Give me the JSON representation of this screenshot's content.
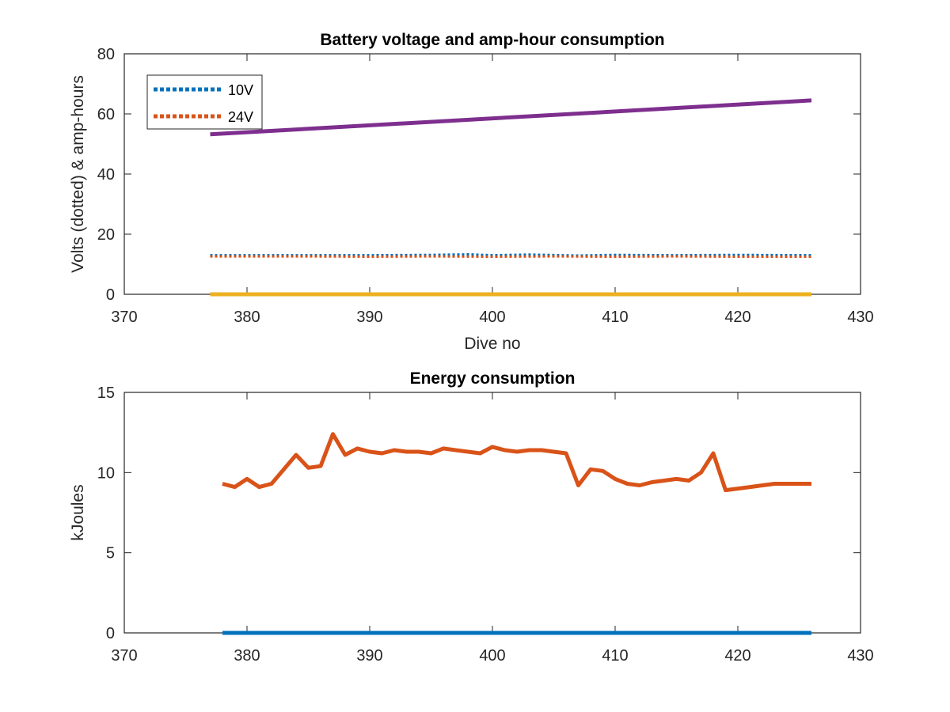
{
  "chart_data": [
    {
      "type": "line",
      "title": "Battery voltage and amp-hour consumption",
      "xlabel": "Dive no",
      "ylabel": "Volts (dotted) & amp-hours",
      "xlim": [
        370,
        430
      ],
      "ylim": [
        0,
        80
      ],
      "xticks": [
        "370",
        "380",
        "390",
        "400",
        "410",
        "420",
        "430"
      ],
      "yticks": [
        "0",
        "20",
        "40",
        "60",
        "80"
      ],
      "grid": false,
      "legend": {
        "placement": "top-left",
        "entries": [
          "10V",
          "24V"
        ]
      },
      "series": [
        {
          "name": "10V",
          "style": "dotted",
          "color": "#0072BD",
          "x": [
            377,
            385,
            390,
            395,
            398,
            400,
            403,
            407,
            410,
            415,
            420,
            426
          ],
          "y": [
            13.0,
            13.0,
            13.0,
            13.1,
            13.3,
            13.0,
            13.2,
            12.9,
            13.1,
            13.0,
            13.1,
            13.0
          ]
        },
        {
          "name": "24V",
          "style": "dotted",
          "color": "#D95319",
          "x": [
            377,
            385,
            390,
            395,
            400,
            405,
            410,
            415,
            420,
            426
          ],
          "y": [
            12.6,
            12.6,
            12.5,
            12.6,
            12.5,
            12.6,
            12.5,
            12.6,
            12.5,
            12.5
          ]
        },
        {
          "style": "solid",
          "color": "#7E2F8E",
          "x": [
            377,
            426
          ],
          "y": [
            53.2,
            64.5
          ]
        },
        {
          "style": "solid",
          "color": "#EDB120",
          "x": [
            377,
            426
          ],
          "y": [
            0,
            0
          ]
        }
      ]
    },
    {
      "type": "line",
      "title": "Energy consumption",
      "xlabel": "",
      "ylabel": "kJoules",
      "xlim": [
        370,
        430
      ],
      "ylim": [
        0,
        15
      ],
      "xticks": [
        "370",
        "380",
        "390",
        "400",
        "410",
        "420",
        "430"
      ],
      "yticks": [
        "0",
        "5",
        "10",
        "15"
      ],
      "grid": false,
      "series": [
        {
          "style": "solid",
          "color": "#D95319",
          "x": [
            378,
            379,
            380,
            381,
            382,
            383,
            384,
            385,
            386,
            387,
            388,
            389,
            390,
            391,
            392,
            393,
            394,
            395,
            396,
            397,
            398,
            399,
            400,
            401,
            402,
            403,
            404,
            405,
            406,
            407,
            408,
            409,
            410,
            411,
            412,
            413,
            414,
            415,
            416,
            417,
            418,
            419,
            420,
            421,
            422,
            423,
            424,
            425,
            426
          ],
          "y": [
            9.3,
            9.1,
            9.6,
            9.1,
            9.3,
            10.2,
            11.1,
            10.3,
            10.4,
            12.4,
            11.1,
            11.5,
            11.3,
            11.2,
            11.4,
            11.3,
            11.3,
            11.2,
            11.5,
            11.4,
            11.3,
            11.2,
            11.6,
            11.4,
            11.3,
            11.4,
            11.4,
            11.3,
            11.2,
            9.2,
            10.2,
            10.1,
            9.6,
            9.3,
            9.2,
            9.4,
            9.5,
            9.6,
            9.5,
            10.0,
            11.2,
            8.9,
            9.0,
            9.1,
            9.2,
            9.3,
            9.3,
            9.3,
            9.3
          ]
        },
        {
          "style": "solid",
          "color": "#0072BD",
          "x": [
            378,
            426
          ],
          "y": [
            0,
            0
          ]
        }
      ]
    }
  ]
}
